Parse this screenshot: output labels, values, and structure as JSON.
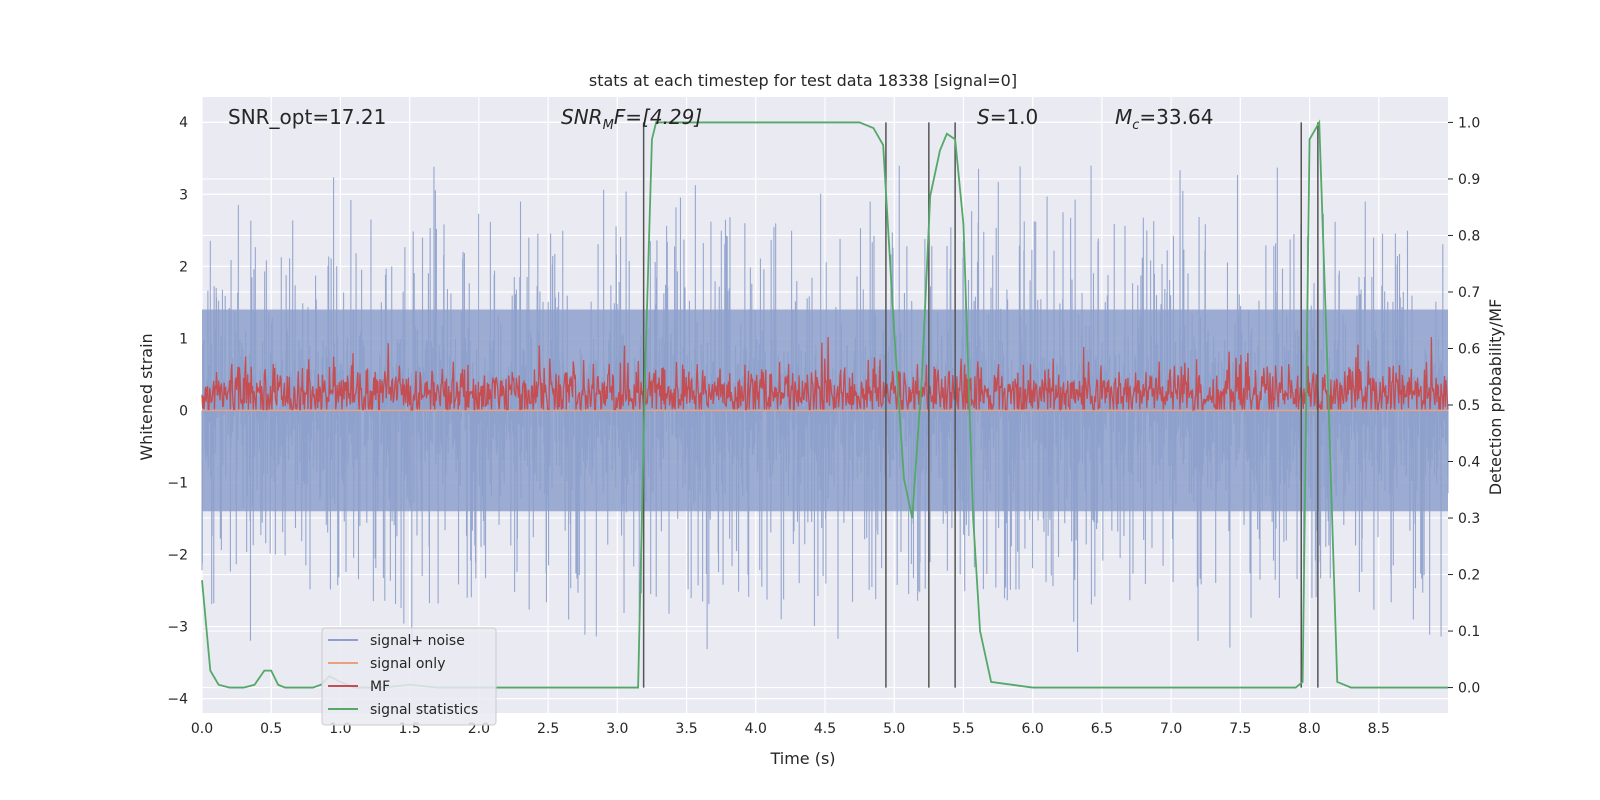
{
  "chart_data": {
    "type": "line",
    "title": "stats at each timestep for test data 18338 [signal=0]",
    "xlabel": "Time (s)",
    "ylabel_left": "Whitened strain",
    "ylabel_right": "Detection probability/MF",
    "xlim": [
      0.0,
      9.0
    ],
    "ylim_left": [
      -4.2,
      4.35
    ],
    "ylim_right": [
      -0.045,
      1.045
    ],
    "x_ticks": [
      "0.0",
      "0.5",
      "1.0",
      "1.5",
      "2.0",
      "2.5",
      "3.0",
      "3.5",
      "4.0",
      "4.5",
      "5.0",
      "5.5",
      "6.0",
      "6.5",
      "7.0",
      "7.5",
      "8.0",
      "8.5"
    ],
    "y_ticks_left": [
      "4",
      "3",
      "2",
      "1",
      "0",
      "−1",
      "−2",
      "−3",
      "−4"
    ],
    "y_ticks_right": [
      "1.0",
      "0.9",
      "0.8",
      "0.7",
      "0.6",
      "0.5",
      "0.4",
      "0.3",
      "0.2",
      "0.1",
      "0.0"
    ],
    "annotations": {
      "snr_opt": "SNR_opt=17.21",
      "snr_mf_main": "SNR",
      "snr_mf_sub": "M",
      "snr_mf_rest": "F=[4.29]",
      "s_main": "S",
      "s_rest": "=1.0",
      "mc_main": "M",
      "mc_sub": "c",
      "mc_rest": "=33.64"
    },
    "vertical_lines_x": [
      3.19,
      4.94,
      5.25,
      5.44,
      7.94,
      8.06
    ],
    "series": [
      {
        "name": "signal+ noise",
        "color": "#8da0cb",
        "axis": "left",
        "description_stats": {
          "center": 0.0,
          "typical_range": [
            -1.5,
            1.5
          ],
          "max_spike": 3.45,
          "min_spike": -3.65
        }
      },
      {
        "name": "signal only",
        "color": "#e9a27e",
        "axis": "left",
        "x": [
          0.0,
          9.0
        ],
        "y": [
          0.0,
          0.0
        ]
      },
      {
        "name": "MF",
        "color": "#c44e52",
        "axis": "right",
        "description_stats": {
          "center": 0.52,
          "typical_range": [
            0.49,
            0.57
          ]
        }
      },
      {
        "name": "signal statistics",
        "color": "#55a868",
        "axis": "right",
        "x": [
          0.0,
          0.06,
          0.12,
          0.2,
          0.3,
          0.38,
          0.45,
          0.5,
          0.55,
          0.6,
          0.7,
          0.8,
          0.86,
          0.92,
          1.0,
          1.1,
          1.3,
          1.5,
          1.7,
          2.0,
          2.5,
          3.0,
          3.1,
          3.15,
          3.2,
          3.25,
          3.28,
          3.35,
          3.5,
          3.75,
          4.0,
          4.5,
          4.75,
          4.85,
          4.92,
          5.0,
          5.07,
          5.13,
          5.2,
          5.26,
          5.33,
          5.38,
          5.44,
          5.5,
          5.57,
          5.62,
          5.7,
          6.0,
          7.0,
          7.5,
          7.9,
          7.95,
          8.0,
          8.07,
          8.13,
          8.2,
          8.3,
          9.0
        ],
        "y": [
          0.19,
          0.03,
          0.005,
          0.0,
          0.0,
          0.005,
          0.03,
          0.03,
          0.005,
          0.0,
          0.0,
          0.0,
          0.005,
          0.02,
          0.01,
          0.0,
          0.0,
          0.005,
          0.0,
          0.0,
          0.0,
          0.0,
          0.0,
          0.0,
          0.55,
          0.97,
          1.0,
          1.0,
          1.0,
          1.0,
          1.0,
          1.0,
          1.0,
          0.99,
          0.96,
          0.63,
          0.37,
          0.3,
          0.55,
          0.87,
          0.95,
          0.98,
          0.97,
          0.82,
          0.3,
          0.1,
          0.01,
          0.0,
          0.0,
          0.0,
          0.0,
          0.01,
          0.97,
          1.0,
          0.56,
          0.01,
          0.0,
          0.0
        ]
      }
    ],
    "legend_placement": "lower-left",
    "grid": true,
    "background_color": "#eaeaf2"
  }
}
